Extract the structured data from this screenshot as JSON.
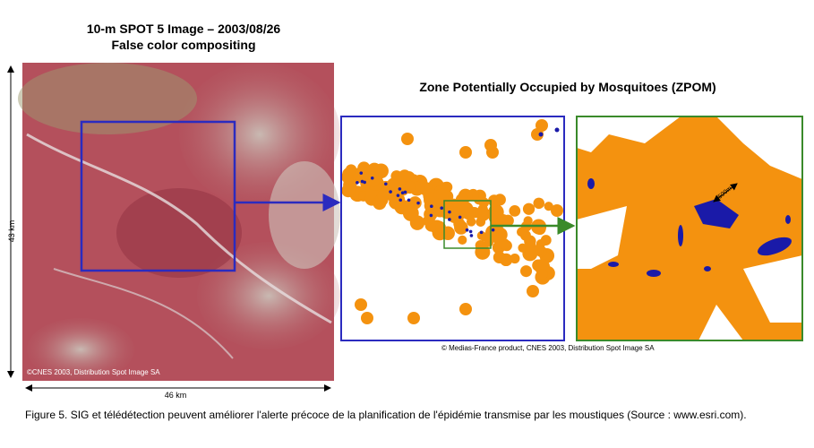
{
  "left_panel": {
    "title": "10-m SPOT 5 Image – 2003/08/26",
    "subtitle": "False color compositing",
    "credit": "©CNES 2003, Distribution Spot Image SA",
    "height_label": "43 km",
    "width_label": "46 km"
  },
  "right_panel": {
    "title": "Zone Potentially Occupied by Mosquitoes (ZPOM)",
    "scale_label": "500m",
    "credit": "© Medias-France product, CNES 2003, Distribution Spot Image SA"
  },
  "caption": "Figure 5. SIG et télédétection peuvent améliorer l'alerte précoce de la planification de l'épidémie transmise par les moustiques (Source : www.esri.com)."
}
